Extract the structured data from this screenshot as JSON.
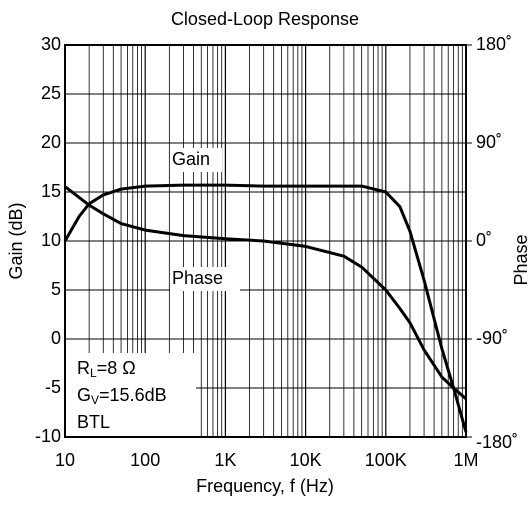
{
  "chart_data": {
    "type": "line",
    "title": "Closed-Loop Response",
    "x_label": "Frequency, f (Hz)",
    "y_label": "Gain (dB)",
    "y2_label": "Phase",
    "log_x": true,
    "grid": true,
    "minor_grid": true,
    "xlim": [
      10,
      1000000
    ],
    "xticks": [
      10,
      100,
      {
        "value": 1000,
        "label": "1K"
      },
      {
        "value": 10000,
        "label": "10K"
      },
      {
        "value": 100000,
        "label": "100K"
      },
      {
        "value": 1000000,
        "label": "1M"
      }
    ],
    "ylim": [
      -10,
      30
    ],
    "yticks": [
      -10,
      -5,
      0,
      5,
      10,
      15,
      20,
      25,
      30
    ],
    "y2lim": [
      -180,
      180
    ],
    "y2ticks": [
      {
        "value": -180,
        "label": "-180˚"
      },
      {
        "value": -90,
        "label": "-90˚"
      },
      {
        "value": 0,
        "label": "0˚"
      },
      {
        "value": 90,
        "label": "90˚"
      },
      {
        "value": 180,
        "label": "180˚"
      }
    ],
    "x": [
      10,
      15,
      20,
      30,
      50,
      100,
      300,
      1000,
      3000,
      10000,
      30000,
      50000,
      100000,
      150000,
      200000,
      300000,
      500000,
      700000,
      1000000
    ],
    "series": [
      {
        "name": "Gain",
        "color": "#000000",
        "axis": "y",
        "values": [
          10,
          12.5,
          13.8,
          14.7,
          15.3,
          15.6,
          15.7,
          15.7,
          15.6,
          15.6,
          15.6,
          15.6,
          15.0,
          13.5,
          11,
          6,
          -1,
          -5,
          -9.5
        ]
      },
      {
        "name": "Phase",
        "color": "#000000",
        "axis": "y2",
        "values": [
          50,
          40,
          33,
          25,
          16,
          10,
          5,
          2,
          0,
          -5,
          -14,
          -24,
          -45,
          -62,
          -75,
          -100,
          -125,
          -135,
          -145
        ]
      }
    ],
    "conditions": [
      {
        "main": "R",
        "sub": "L",
        "rest": "=8 Ω"
      },
      {
        "main": "G",
        "sub": "V",
        "rest": "=15.6dB"
      },
      {
        "main": "BTL"
      }
    ]
  }
}
